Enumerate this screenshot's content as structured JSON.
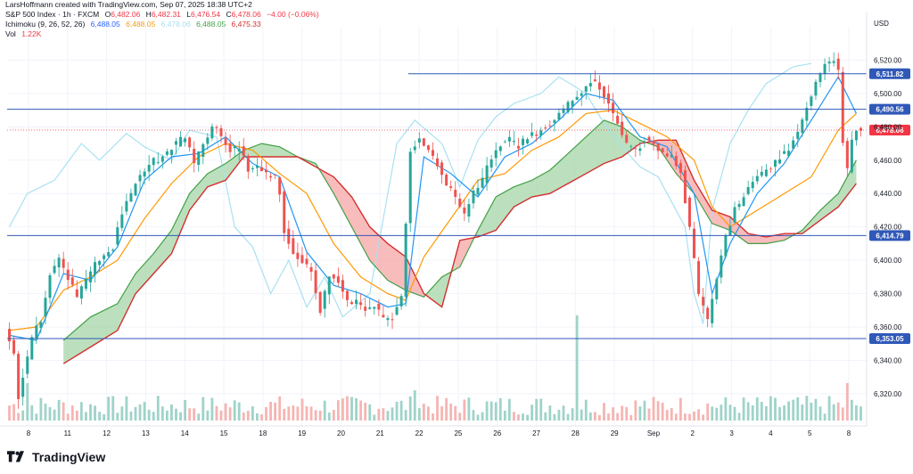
{
  "header": {
    "author_line": "LarsHoffmann created with TradingView.com, Sep 07, 2025 18:38 UTC+2",
    "symbol": "S&P 500 Index · 1h · FXCM",
    "ohlc": {
      "o_label": "O",
      "o": "6,482.06",
      "h_label": "H",
      "h": "6,482.31",
      "l_label": "L",
      "l": "6,476.54",
      "c_label": "C",
      "c": "6,478.06",
      "change": "−4.00 (−0.06%)"
    },
    "ichimoku_label": "Ichimoku (9, 26, 52, 26)",
    "ichimoku_values": [
      "6,488.05",
      "6,488.05",
      "6,478.06",
      "6,488.05",
      "6,475.33"
    ],
    "vol_label": "Vol",
    "vol_value": "1.22K"
  },
  "currency": "USD",
  "brand": "TradingView",
  "colors": {
    "up": "#26a69a",
    "down": "#ef5350",
    "tenkan": "#2196f3",
    "kijun": "#ff9800",
    "chikou": "#a8e1f2",
    "span_a": "#43a047",
    "span_b": "#d32f2f",
    "cloud_up": "#a5d6a7",
    "cloud_down": "#f7a6a6",
    "hline": "#2f58b8"
  },
  "chart_data": {
    "type": "candlestick",
    "symbol": "S&P 500 Index",
    "interval": "1h",
    "ylim": [
      6305,
      6540
    ],
    "y_ticks": [
      6320,
      6340,
      6360,
      6380,
      6400,
      6420,
      6440,
      6460,
      6480,
      6500,
      6520
    ],
    "x_ticks": [
      "8",
      "11",
      "12",
      "13",
      "14",
      "15",
      "18",
      "19",
      "20",
      "21",
      "22",
      "25",
      "26",
      "27",
      "28",
      "29",
      "Sep",
      "2",
      "3",
      "4",
      "5",
      "8"
    ],
    "horizontal_lines": [
      {
        "value": 6511.82,
        "label": "6,511.82"
      },
      {
        "value": 6490.56,
        "label": "6,490.56"
      },
      {
        "value": 6414.79,
        "label": "6,414.79"
      },
      {
        "value": 6353.05,
        "label": "6,353.05"
      }
    ],
    "last_price": {
      "value": 6478.06,
      "label": "6,478.06"
    },
    "price_path": [
      [
        0,
        6357
      ],
      [
        2,
        6345
      ],
      [
        3,
        6318
      ],
      [
        4,
        6330
      ],
      [
        6,
        6355
      ],
      [
        8,
        6365
      ],
      [
        10,
        6392
      ],
      [
        12,
        6400
      ],
      [
        14,
        6390
      ],
      [
        16,
        6378
      ],
      [
        18,
        6388
      ],
      [
        20,
        6398
      ],
      [
        24,
        6408
      ],
      [
        26,
        6428
      ],
      [
        28,
        6440
      ],
      [
        30,
        6452
      ],
      [
        32,
        6458
      ],
      [
        35,
        6462
      ],
      [
        38,
        6470
      ],
      [
        40,
        6474
      ],
      [
        42,
        6458
      ],
      [
        44,
        6470
      ],
      [
        46,
        6480
      ],
      [
        48,
        6475
      ],
      [
        50,
        6466
      ],
      [
        52,
        6468
      ],
      [
        54,
        6454
      ],
      [
        56,
        6456
      ],
      [
        58,
        6452
      ],
      [
        60,
        6450
      ],
      [
        61,
        6440
      ],
      [
        62,
        6418
      ],
      [
        64,
        6405
      ],
      [
        66,
        6400
      ],
      [
        68,
        6392
      ],
      [
        70,
        6370
      ],
      [
        72,
        6390
      ],
      [
        74,
        6388
      ],
      [
        76,
        6375
      ],
      [
        78,
        6376
      ],
      [
        80,
        6370
      ],
      [
        82,
        6372
      ],
      [
        84,
        6366
      ],
      [
        86,
        6366
      ],
      [
        88,
        6378
      ],
      [
        90,
        6465
      ],
      [
        92,
        6474
      ],
      [
        94,
        6466
      ],
      [
        96,
        6458
      ],
      [
        98,
        6445
      ],
      [
        100,
        6438
      ],
      [
        102,
        6428
      ],
      [
        104,
        6440
      ],
      [
        106,
        6448
      ],
      [
        108,
        6462
      ],
      [
        110,
        6470
      ],
      [
        112,
        6472
      ],
      [
        114,
        6468
      ],
      [
        116,
        6474
      ],
      [
        118,
        6476
      ],
      [
        120,
        6480
      ],
      [
        122,
        6484
      ],
      [
        124,
        6490
      ],
      [
        126,
        6496
      ],
      [
        128,
        6500
      ],
      [
        130,
        6508
      ],
      [
        132,
        6504
      ],
      [
        134,
        6494
      ],
      [
        136,
        6482
      ],
      [
        138,
        6470
      ],
      [
        140,
        6466
      ],
      [
        142,
        6472
      ],
      [
        144,
        6470
      ],
      [
        146,
        6464
      ],
      [
        148,
        6462
      ],
      [
        150,
        6452
      ],
      [
        152,
        6420
      ],
      [
        154,
        6380
      ],
      [
        156,
        6364
      ],
      [
        158,
        6388
      ],
      [
        160,
        6415
      ],
      [
        162,
        6430
      ],
      [
        164,
        6438
      ],
      [
        166,
        6448
      ],
      [
        168,
        6452
      ],
      [
        170,
        6456
      ],
      [
        172,
        6462
      ],
      [
        174,
        6466
      ],
      [
        176,
        6478
      ],
      [
        178,
        6492
      ],
      [
        180,
        6508
      ],
      [
        182,
        6516
      ],
      [
        184,
        6520
      ],
      [
        185,
        6514
      ],
      [
        186,
        6470
      ],
      [
        187,
        6454
      ],
      [
        188,
        6472
      ],
      [
        189,
        6478
      ]
    ],
    "ichimoku": {
      "tenkan": [
        [
          0,
          6355
        ],
        [
          6,
          6352
        ],
        [
          12,
          6392
        ],
        [
          18,
          6388
        ],
        [
          24,
          6408
        ],
        [
          30,
          6448
        ],
        [
          36,
          6462
        ],
        [
          42,
          6464
        ],
        [
          48,
          6474
        ],
        [
          54,
          6458
        ],
        [
          60,
          6450
        ],
        [
          66,
          6405
        ],
        [
          72,
          6385
        ],
        [
          78,
          6380
        ],
        [
          84,
          6372
        ],
        [
          88,
          6374
        ],
        [
          92,
          6462
        ],
        [
          98,
          6452
        ],
        [
          104,
          6438
        ],
        [
          110,
          6462
        ],
        [
          116,
          6470
        ],
        [
          122,
          6484
        ],
        [
          128,
          6500
        ],
        [
          134,
          6496
        ],
        [
          140,
          6474
        ],
        [
          146,
          6468
        ],
        [
          152,
          6440
        ],
        [
          156,
          6380
        ],
        [
          160,
          6410
        ],
        [
          166,
          6440
        ],
        [
          172,
          6458
        ],
        [
          178,
          6484
        ],
        [
          184,
          6510
        ],
        [
          188,
          6488
        ]
      ],
      "kijun": [
        [
          0,
          6358
        ],
        [
          6,
          6360
        ],
        [
          12,
          6382
        ],
        [
          18,
          6390
        ],
        [
          24,
          6400
        ],
        [
          30,
          6425
        ],
        [
          36,
          6446
        ],
        [
          42,
          6462
        ],
        [
          48,
          6470
        ],
        [
          54,
          6466
        ],
        [
          60,
          6452
        ],
        [
          66,
          6440
        ],
        [
          72,
          6410
        ],
        [
          78,
          6390
        ],
        [
          84,
          6380
        ],
        [
          88,
          6376
        ],
        [
          92,
          6402
        ],
        [
          98,
          6425
        ],
        [
          104,
          6448
        ],
        [
          110,
          6452
        ],
        [
          116,
          6466
        ],
        [
          122,
          6474
        ],
        [
          128,
          6488
        ],
        [
          134,
          6490
        ],
        [
          140,
          6482
        ],
        [
          146,
          6474
        ],
        [
          152,
          6460
        ],
        [
          156,
          6432
        ],
        [
          160,
          6420
        ],
        [
          166,
          6430
        ],
        [
          172,
          6440
        ],
        [
          178,
          6450
        ],
        [
          184,
          6478
        ],
        [
          188,
          6488
        ]
      ],
      "chikou": [
        [
          0,
          6420
        ],
        [
          4,
          6440
        ],
        [
          10,
          6448
        ],
        [
          16,
          6470
        ],
        [
          20,
          6460
        ],
        [
          26,
          6476
        ],
        [
          30,
          6468
        ],
        [
          36,
          6460
        ],
        [
          40,
          6478
        ],
        [
          46,
          6474
        ],
        [
          50,
          6420
        ],
        [
          54,
          6408
        ],
        [
          58,
          6380
        ],
        [
          62,
          6400
        ],
        [
          66,
          6372
        ],
        [
          70,
          6390
        ],
        [
          74,
          6366
        ],
        [
          80,
          6380
        ],
        [
          86,
          6470
        ],
        [
          90,
          6484
        ],
        [
          96,
          6470
        ],
        [
          100,
          6444
        ],
        [
          104,
          6472
        ],
        [
          108,
          6486
        ],
        [
          112,
          6494
        ],
        [
          118,
          6500
        ],
        [
          122,
          6510
        ],
        [
          128,
          6500
        ],
        [
          132,
          6482
        ],
        [
          136,
          6468
        ],
        [
          140,
          6456
        ],
        [
          144,
          6450
        ],
        [
          150,
          6420
        ],
        [
          152,
          6380
        ],
        [
          154,
          6362
        ],
        [
          156,
          6430
        ],
        [
          160,
          6470
        ],
        [
          164,
          6490
        ],
        [
          168,
          6506
        ],
        [
          174,
          6516
        ],
        [
          178,
          6518
        ]
      ],
      "span_a": [
        [
          12,
          6352
        ],
        [
          18,
          6366
        ],
        [
          24,
          6374
        ],
        [
          28,
          6392
        ],
        [
          32,
          6404
        ],
        [
          36,
          6418
        ],
        [
          40,
          6440
        ],
        [
          44,
          6452
        ],
        [
          48,
          6458
        ],
        [
          52,
          6466
        ],
        [
          56,
          6470
        ],
        [
          60,
          6468
        ],
        [
          64,
          6462
        ],
        [
          68,
          6458
        ],
        [
          72,
          6440
        ],
        [
          76,
          6420
        ],
        [
          80,
          6400
        ],
        [
          84,
          6388
        ],
        [
          88,
          6382
        ],
        [
          92,
          6378
        ],
        [
          96,
          6390
        ],
        [
          100,
          6396
        ],
        [
          104,
          6418
        ],
        [
          108,
          6438
        ],
        [
          112,
          6444
        ],
        [
          116,
          6448
        ],
        [
          120,
          6454
        ],
        [
          124,
          6464
        ],
        [
          128,
          6474
        ],
        [
          132,
          6484
        ],
        [
          136,
          6480
        ],
        [
          140,
          6472
        ],
        [
          144,
          6468
        ],
        [
          148,
          6452
        ],
        [
          152,
          6440
        ],
        [
          156,
          6422
        ],
        [
          160,
          6418
        ],
        [
          164,
          6410
        ],
        [
          168,
          6410
        ],
        [
          172,
          6412
        ],
        [
          176,
          6418
        ],
        [
          180,
          6430
        ],
        [
          184,
          6440
        ],
        [
          188,
          6460
        ]
      ],
      "span_b": [
        [
          12,
          6338
        ],
        [
          18,
          6348
        ],
        [
          24,
          6358
        ],
        [
          28,
          6380
        ],
        [
          32,
          6392
        ],
        [
          36,
          6404
        ],
        [
          40,
          6430
        ],
        [
          44,
          6444
        ],
        [
          48,
          6448
        ],
        [
          52,
          6462
        ],
        [
          56,
          6462
        ],
        [
          60,
          6462
        ],
        [
          64,
          6462
        ],
        [
          68,
          6456
        ],
        [
          72,
          6450
        ],
        [
          76,
          6438
        ],
        [
          80,
          6420
        ],
        [
          84,
          6410
        ],
        [
          88,
          6402
        ],
        [
          92,
          6380
        ],
        [
          96,
          6372
        ],
        [
          100,
          6412
        ],
        [
          104,
          6414
        ],
        [
          108,
          6418
        ],
        [
          112,
          6432
        ],
        [
          116,
          6438
        ],
        [
          120,
          6440
        ],
        [
          124,
          6446
        ],
        [
          128,
          6452
        ],
        [
          132,
          6458
        ],
        [
          136,
          6462
        ],
        [
          140,
          6470
        ],
        [
          144,
          6472
        ],
        [
          148,
          6472
        ],
        [
          152,
          6448
        ],
        [
          156,
          6430
        ],
        [
          160,
          6426
        ],
        [
          164,
          6416
        ],
        [
          168,
          6414
        ],
        [
          172,
          6416
        ],
        [
          176,
          6416
        ],
        [
          180,
          6424
        ],
        [
          184,
          6432
        ],
        [
          188,
          6446
        ]
      ]
    },
    "volume_max_label": "1.22K"
  }
}
